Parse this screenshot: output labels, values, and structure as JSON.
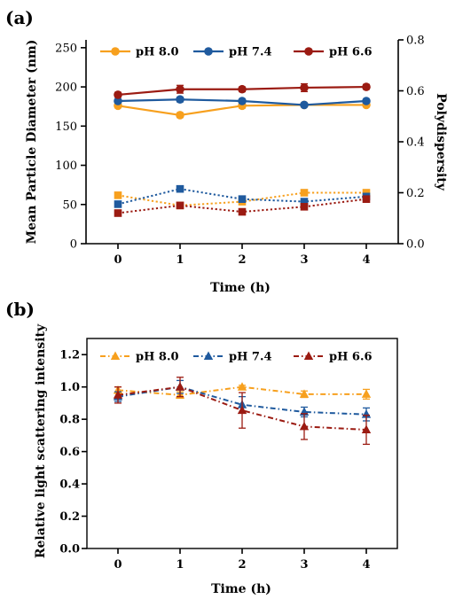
{
  "colors": {
    "ph80": "#f7a01e",
    "ph74": "#1f5a9e",
    "ph66": "#9b1b12"
  },
  "panels": [
    {
      "id": "a",
      "label": "(a)",
      "xlabel": "Time (h)",
      "ylabel": "Mean Particle Diameter (nm)",
      "y2label": "Polydispersity",
      "chart_data": {
        "type": "line",
        "x": [
          0,
          1,
          2,
          3,
          4
        ],
        "xticks": [
          "0",
          "1",
          "2",
          "3",
          "4"
        ],
        "ylim": [
          0,
          260
        ],
        "yticks": [
          "0",
          "50",
          "100",
          "150",
          "200",
          "250"
        ],
        "y2lim": [
          0,
          0.8
        ],
        "y2ticks": [
          "0.0",
          "0.2",
          "0.4",
          "0.6",
          "0.8"
        ],
        "legend": [
          "pH 8.0",
          "pH 7.4",
          "pH 6.6"
        ],
        "series": [
          {
            "name": "pH 8.0",
            "axis": "left",
            "style": "solid",
            "marker": "circle",
            "colorKey": "ph80",
            "values": [
              176,
              164,
              176,
              177,
              177
            ],
            "errors": [
              2,
              3,
              3,
              2,
              2
            ]
          },
          {
            "name": "pH 7.4",
            "axis": "left",
            "style": "solid",
            "marker": "circle",
            "colorKey": "ph74",
            "values": [
              182,
              184,
              182,
              177,
              182
            ],
            "errors": [
              2,
              3,
              2,
              2,
              2
            ]
          },
          {
            "name": "pH 6.6",
            "axis": "left",
            "style": "solid",
            "marker": "circle",
            "colorKey": "ph66",
            "values": [
              190,
              197,
              197,
              199,
              200
            ],
            "errors": [
              3,
              5,
              3,
              5,
              3
            ]
          },
          {
            "name": "pH 8.0",
            "axis": "right",
            "style": "dotted",
            "marker": "square",
            "colorKey": "ph80",
            "values": [
              0.19,
              0.15,
              0.165,
              0.2,
              0.2
            ]
          },
          {
            "name": "pH 7.4",
            "axis": "right",
            "style": "dotted",
            "marker": "square",
            "colorKey": "ph74",
            "values": [
              0.155,
              0.215,
              0.175,
              0.165,
              0.185
            ]
          },
          {
            "name": "pH 6.6",
            "axis": "right",
            "style": "dotted",
            "marker": "square",
            "colorKey": "ph66",
            "values": [
              0.12,
              0.15,
              0.125,
              0.145,
              0.175
            ]
          }
        ]
      }
    },
    {
      "id": "b",
      "label": "(b)",
      "xlabel": "Time (h)",
      "ylabel": "Relative light scattering intensity",
      "chart_data": {
        "type": "line",
        "x": [
          0,
          1,
          2,
          3,
          4
        ],
        "xticks": [
          "0",
          "1",
          "2",
          "3",
          "4"
        ],
        "ylim": [
          0,
          1.3
        ],
        "yticks": [
          "0.0",
          "0.2",
          "0.4",
          "0.6",
          "0.8",
          "1.0",
          "1.2"
        ],
        "legend": [
          "pH 8.0",
          "pH 7.4",
          "pH 6.6"
        ],
        "series": [
          {
            "name": "pH 8.0",
            "style": "dashdot",
            "marker": "triangle",
            "colorKey": "ph80",
            "values": [
              0.98,
              0.95,
              1.0,
              0.955,
              0.955
            ],
            "errors": [
              0.02,
              0.02,
              0.01,
              0.02,
              0.03
            ]
          },
          {
            "name": "pH 7.4",
            "style": "dashdot",
            "marker": "triangle",
            "colorKey": "ph74",
            "values": [
              0.94,
              1.0,
              0.89,
              0.845,
              0.83
            ],
            "errors": [
              0.03,
              0.04,
              0.05,
              0.03,
              0.04
            ]
          },
          {
            "name": "pH 6.6",
            "style": "dashdot",
            "marker": "triangle",
            "colorKey": "ph66",
            "values": [
              0.95,
              1.0,
              0.855,
              0.755,
              0.735
            ],
            "errors": [
              0.05,
              0.06,
              0.11,
              0.08,
              0.09
            ]
          }
        ]
      }
    }
  ]
}
